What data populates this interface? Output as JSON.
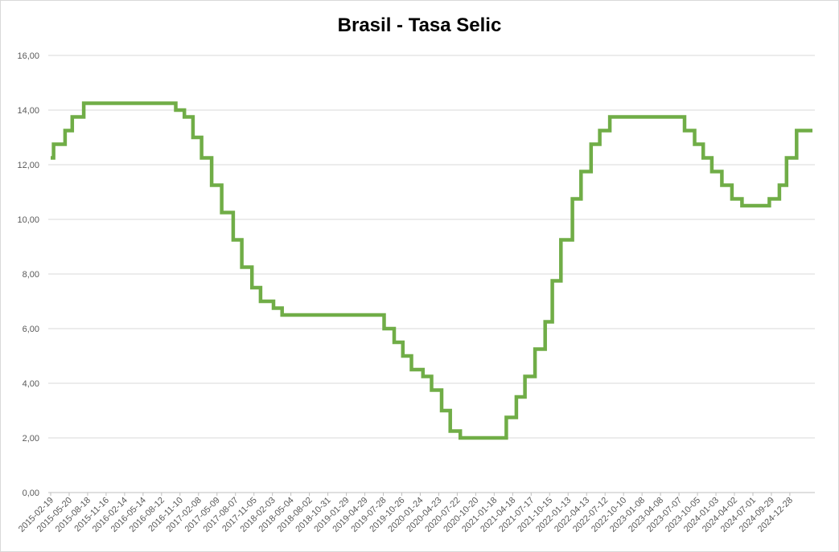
{
  "chart_data": {
    "type": "line",
    "title": "Brasil - Tasa Selic",
    "xlabel": "",
    "ylabel": "",
    "ylim": [
      0,
      16
    ],
    "y_ticks": [
      "0,00",
      "2,00",
      "4,00",
      "6,00",
      "8,00",
      "10,00",
      "12,00",
      "14,00",
      "16,00"
    ],
    "x_tick_labels": [
      "2015-02-19",
      "2015-05-20",
      "2015-08-18",
      "2015-11-16",
      "2016-02-14",
      "2016-05-14",
      "2016-08-12",
      "2016-11-10",
      "2017-02-08",
      "2017-05-09",
      "2017-08-07",
      "2017-11-05",
      "2018-02-03",
      "2018-05-04",
      "2018-08-02",
      "2018-10-31",
      "2019-01-29",
      "2019-04-29",
      "2019-07-28",
      "2019-10-26",
      "2020-01-24",
      "2020-04-23",
      "2020-07-22",
      "2020-10-20",
      "2021-01-18",
      "2021-04-18",
      "2021-07-17",
      "2021-10-15",
      "2022-01-13",
      "2022-04-13",
      "2022-07-12",
      "2022-10-10",
      "2023-01-08",
      "2023-04-08",
      "2023-07-07",
      "2023-10-05",
      "2024-01-03",
      "2024-04-02",
      "2024-07-01",
      "2024-09-29",
      "2024-12-28"
    ],
    "x_range": [
      "2015-02-19",
      "2025-04-17"
    ],
    "grid": "horizontal",
    "line_color": "#70ad47",
    "series": [
      {
        "steps": [
          {
            "x": "2015-02-19",
            "y": 12.25
          },
          {
            "x": "2015-03-05",
            "y": 12.75
          },
          {
            "x": "2015-04-30",
            "y": 13.25
          },
          {
            "x": "2015-06-04",
            "y": 13.75
          },
          {
            "x": "2015-07-30",
            "y": 14.25
          },
          {
            "x": "2016-10-20",
            "y": 14.0
          },
          {
            "x": "2016-12-01",
            "y": 13.75
          },
          {
            "x": "2017-01-12",
            "y": 13.0
          },
          {
            "x": "2017-02-23",
            "y": 12.25
          },
          {
            "x": "2017-04-13",
            "y": 11.25
          },
          {
            "x": "2017-06-01",
            "y": 10.25
          },
          {
            "x": "2017-07-27",
            "y": 9.25
          },
          {
            "x": "2017-09-07",
            "y": 8.25
          },
          {
            "x": "2017-10-26",
            "y": 7.5
          },
          {
            "x": "2017-12-07",
            "y": 7.0
          },
          {
            "x": "2018-02-08",
            "y": 6.75
          },
          {
            "x": "2018-03-22",
            "y": 6.5
          },
          {
            "x": "2019-08-01",
            "y": 6.0
          },
          {
            "x": "2019-09-19",
            "y": 5.5
          },
          {
            "x": "2019-10-31",
            "y": 5.0
          },
          {
            "x": "2019-12-12",
            "y": 4.5
          },
          {
            "x": "2020-02-06",
            "y": 4.25
          },
          {
            "x": "2020-03-19",
            "y": 3.75
          },
          {
            "x": "2020-05-07",
            "y": 3.0
          },
          {
            "x": "2020-06-18",
            "y": 2.25
          },
          {
            "x": "2020-08-06",
            "y": 2.0
          },
          {
            "x": "2021-03-18",
            "y": 2.75
          },
          {
            "x": "2021-05-06",
            "y": 3.5
          },
          {
            "x": "2021-06-17",
            "y": 4.25
          },
          {
            "x": "2021-08-05",
            "y": 5.25
          },
          {
            "x": "2021-09-23",
            "y": 6.25
          },
          {
            "x": "2021-10-28",
            "y": 7.75
          },
          {
            "x": "2021-12-09",
            "y": 9.25
          },
          {
            "x": "2022-02-03",
            "y": 10.75
          },
          {
            "x": "2022-03-17",
            "y": 11.75
          },
          {
            "x": "2022-05-05",
            "y": 12.75
          },
          {
            "x": "2022-06-16",
            "y": 13.25
          },
          {
            "x": "2022-08-04",
            "y": 13.75
          },
          {
            "x": "2023-08-03",
            "y": 13.25
          },
          {
            "x": "2023-09-21",
            "y": 12.75
          },
          {
            "x": "2023-11-02",
            "y": 12.25
          },
          {
            "x": "2023-12-14",
            "y": 11.75
          },
          {
            "x": "2024-02-01",
            "y": 11.25
          },
          {
            "x": "2024-03-21",
            "y": 10.75
          },
          {
            "x": "2024-05-09",
            "y": 10.5
          },
          {
            "x": "2024-09-19",
            "y": 10.75
          },
          {
            "x": "2024-11-07",
            "y": 11.25
          },
          {
            "x": "2024-12-12",
            "y": 12.25
          },
          {
            "x": "2025-01-30",
            "y": 13.25
          },
          {
            "x": "2025-04-17",
            "y": 13.25
          }
        ]
      }
    ]
  }
}
